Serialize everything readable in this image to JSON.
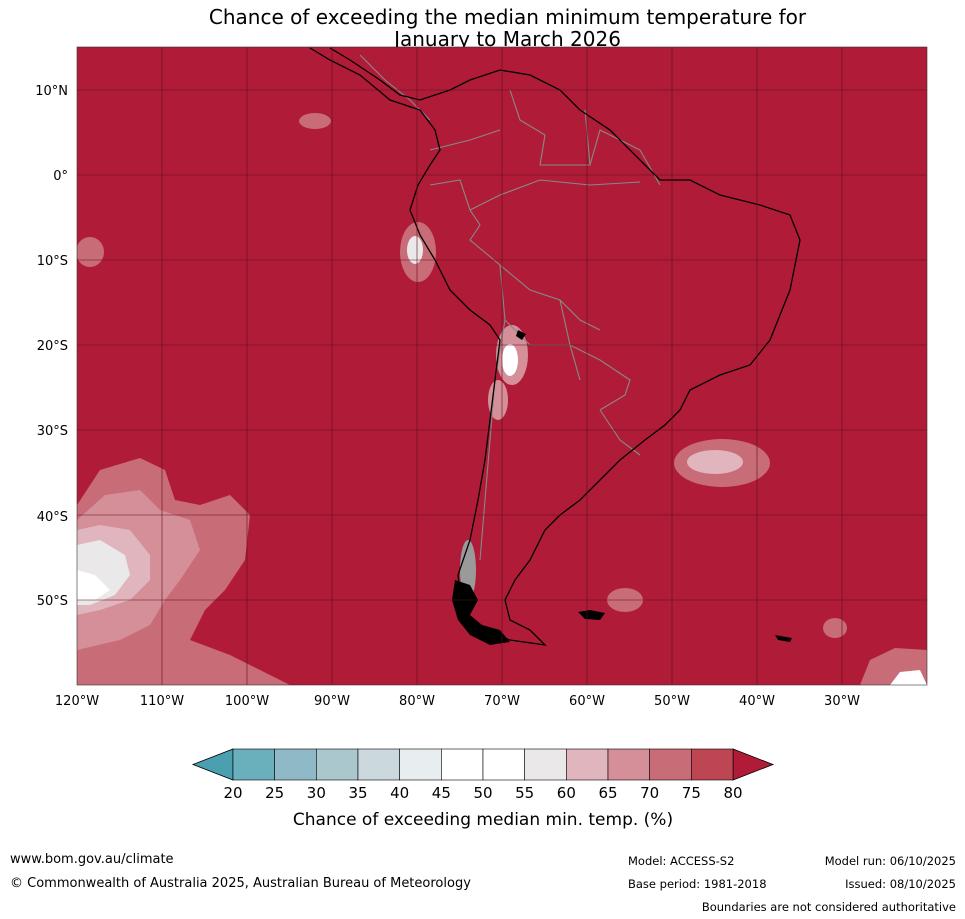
{
  "title": {
    "line1": "Chance of exceeding the median minimum temperature for",
    "line2": "January to March 2026"
  },
  "map": {
    "lat_labels": [
      "10°N",
      "0°",
      "10°S",
      "20°S",
      "30°S",
      "40°S",
      "50°S"
    ],
    "lon_labels": [
      "120°W",
      "110°W",
      "100°W",
      "90°W",
      "80°W",
      "70°W",
      "60°W",
      "50°W",
      "40°W",
      "30°W"
    ],
    "colors": {
      "ocean_fill": "#b01c38",
      "coast": "#000000",
      "borders": "#888888",
      "grid": "#5a0f1c"
    }
  },
  "legend": {
    "ticks": [
      "20",
      "25",
      "30",
      "35",
      "40",
      "45",
      "50",
      "55",
      "60",
      "65",
      "70",
      "75",
      "80"
    ],
    "label": "Chance of exceeding median min. temp. (%)",
    "colors": [
      "#4a9fb0",
      "#6aafbc",
      "#8fb9c6",
      "#a9c7cd",
      "#cbd9de",
      "#e8eef0",
      "#ffffff",
      "#ffffff",
      "#ebe8ea",
      "#e0b5bd",
      "#d48f98",
      "#c86c77",
      "#bd4652",
      "#b01c38"
    ]
  },
  "footer": {
    "url": "www.bom.gov.au/climate",
    "copyright": "© Commonwealth of Australia 2025, Australian Bureau of Meteorology",
    "model": "Model: ACCESS-S2",
    "base_period": "Base period: 1981-2018",
    "model_run": "Model run: 06/10/2025",
    "issued": "Issued: 08/10/2025",
    "disclaimer": "Boundaries are not considered authoritative"
  }
}
